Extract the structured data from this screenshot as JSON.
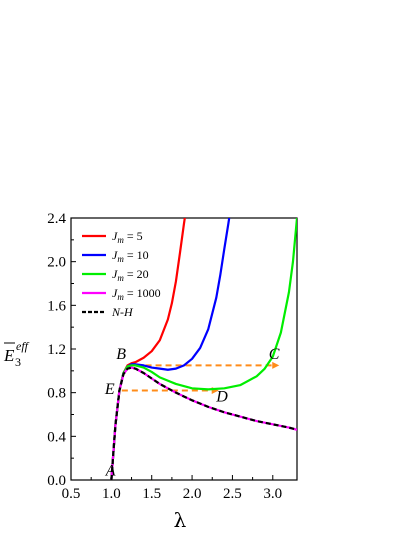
{
  "chart_data": {
    "type": "line",
    "xlabel": "λ",
    "ylabel": {
      "main": "E",
      "sub": "3",
      "sup": "eff"
    },
    "xlim": [
      0.5,
      3.3
    ],
    "ylim": [
      0.0,
      2.4
    ],
    "xticks": [
      "0.5",
      "1.0",
      "1.5",
      "2.0",
      "2.5",
      "3.0"
    ],
    "xtick_values": [
      0.5,
      1.0,
      1.5,
      2.0,
      2.5,
      3.0
    ],
    "yticks": [
      "0.0",
      "0.4",
      "0.8",
      "1.2",
      "1.6",
      "2.0",
      "2.4"
    ],
    "ytick_values": [
      0.0,
      0.4,
      0.8,
      1.2,
      1.6,
      2.0,
      2.4
    ],
    "legend_position": "top-left",
    "series": [
      {
        "name_main": "J",
        "name_sub": "m",
        "name_rest": " = 5",
        "color": "#ff0000",
        "style": "solid",
        "x": [
          1.0,
          1.05,
          1.1,
          1.15,
          1.2,
          1.25,
          1.3,
          1.4,
          1.5,
          1.6,
          1.7,
          1.75,
          1.8,
          1.85,
          1.9,
          1.92
        ],
        "y": [
          0.0,
          0.5,
          0.82,
          0.98,
          1.05,
          1.07,
          1.08,
          1.12,
          1.18,
          1.28,
          1.47,
          1.62,
          1.82,
          2.08,
          2.35,
          2.45
        ]
      },
      {
        "name_main": "J",
        "name_sub": "m",
        "name_rest": " = 10",
        "color": "#0000ff",
        "style": "solid",
        "x": [
          1.0,
          1.05,
          1.1,
          1.15,
          1.2,
          1.25,
          1.3,
          1.4,
          1.5,
          1.6,
          1.7,
          1.8,
          1.9,
          2.0,
          2.1,
          2.2,
          2.3,
          2.35,
          2.4,
          2.45,
          2.47
        ],
        "y": [
          0.0,
          0.5,
          0.82,
          0.98,
          1.04,
          1.06,
          1.06,
          1.05,
          1.03,
          1.02,
          1.01,
          1.02,
          1.05,
          1.11,
          1.21,
          1.38,
          1.67,
          1.88,
          2.12,
          2.35,
          2.45
        ]
      },
      {
        "name_main": "J",
        "name_sub": "m",
        "name_rest": " = 20",
        "color": "#00ee00",
        "style": "solid",
        "x": [
          1.0,
          1.05,
          1.1,
          1.15,
          1.2,
          1.25,
          1.3,
          1.4,
          1.5,
          1.6,
          1.8,
          2.0,
          2.2,
          2.4,
          2.6,
          2.8,
          2.9,
          3.0,
          3.1,
          3.2,
          3.25,
          3.3
        ],
        "y": [
          0.0,
          0.5,
          0.82,
          0.98,
          1.04,
          1.05,
          1.05,
          1.03,
          0.99,
          0.94,
          0.88,
          0.84,
          0.83,
          0.84,
          0.87,
          0.95,
          1.02,
          1.13,
          1.35,
          1.72,
          2.0,
          2.4
        ]
      },
      {
        "name_main": "J",
        "name_sub": "m",
        "name_rest": " = 1000",
        "color": "#ff00ff",
        "style": "solid",
        "x": [
          1.0,
          1.05,
          1.1,
          1.15,
          1.2,
          1.25,
          1.3,
          1.4,
          1.5,
          1.6,
          1.8,
          2.0,
          2.2,
          2.4,
          2.6,
          2.8,
          3.0,
          3.2,
          3.3
        ],
        "y": [
          0.0,
          0.5,
          0.82,
          0.97,
          1.02,
          1.03,
          1.02,
          0.98,
          0.93,
          0.88,
          0.8,
          0.73,
          0.67,
          0.62,
          0.58,
          0.54,
          0.51,
          0.48,
          0.46
        ]
      },
      {
        "name_main": "N-H",
        "name_sub": "",
        "name_rest": "",
        "color": "#000000",
        "style": "dashed",
        "x": [
          1.0,
          1.05,
          1.1,
          1.15,
          1.2,
          1.25,
          1.3,
          1.4,
          1.5,
          1.6,
          1.8,
          2.0,
          2.2,
          2.4,
          2.6,
          2.8,
          3.0,
          3.2,
          3.3
        ],
        "y": [
          0.0,
          0.5,
          0.82,
          0.97,
          1.02,
          1.03,
          1.02,
          0.98,
          0.93,
          0.88,
          0.8,
          0.73,
          0.67,
          0.62,
          0.58,
          0.54,
          0.51,
          0.48,
          0.46
        ]
      }
    ],
    "annotations": [
      {
        "text": "A",
        "x": 0.93,
        "y": 0.04
      },
      {
        "text": "B",
        "x": 1.06,
        "y": 1.11
      },
      {
        "text": "C",
        "x": 2.95,
        "y": 1.11
      },
      {
        "text": "D",
        "x": 2.3,
        "y": 0.72
      },
      {
        "text": "E",
        "x": 0.92,
        "y": 0.79
      }
    ],
    "reference_lines": [
      {
        "color": "#ff8c1a",
        "style": "dashed",
        "x": [
          1.3,
          3.08
        ],
        "y": [
          1.05,
          1.05
        ]
      },
      {
        "color": "#ff8c1a",
        "style": "dashed",
        "x": [
          1.13,
          2.33
        ],
        "y": [
          0.82,
          0.82
        ]
      }
    ]
  }
}
